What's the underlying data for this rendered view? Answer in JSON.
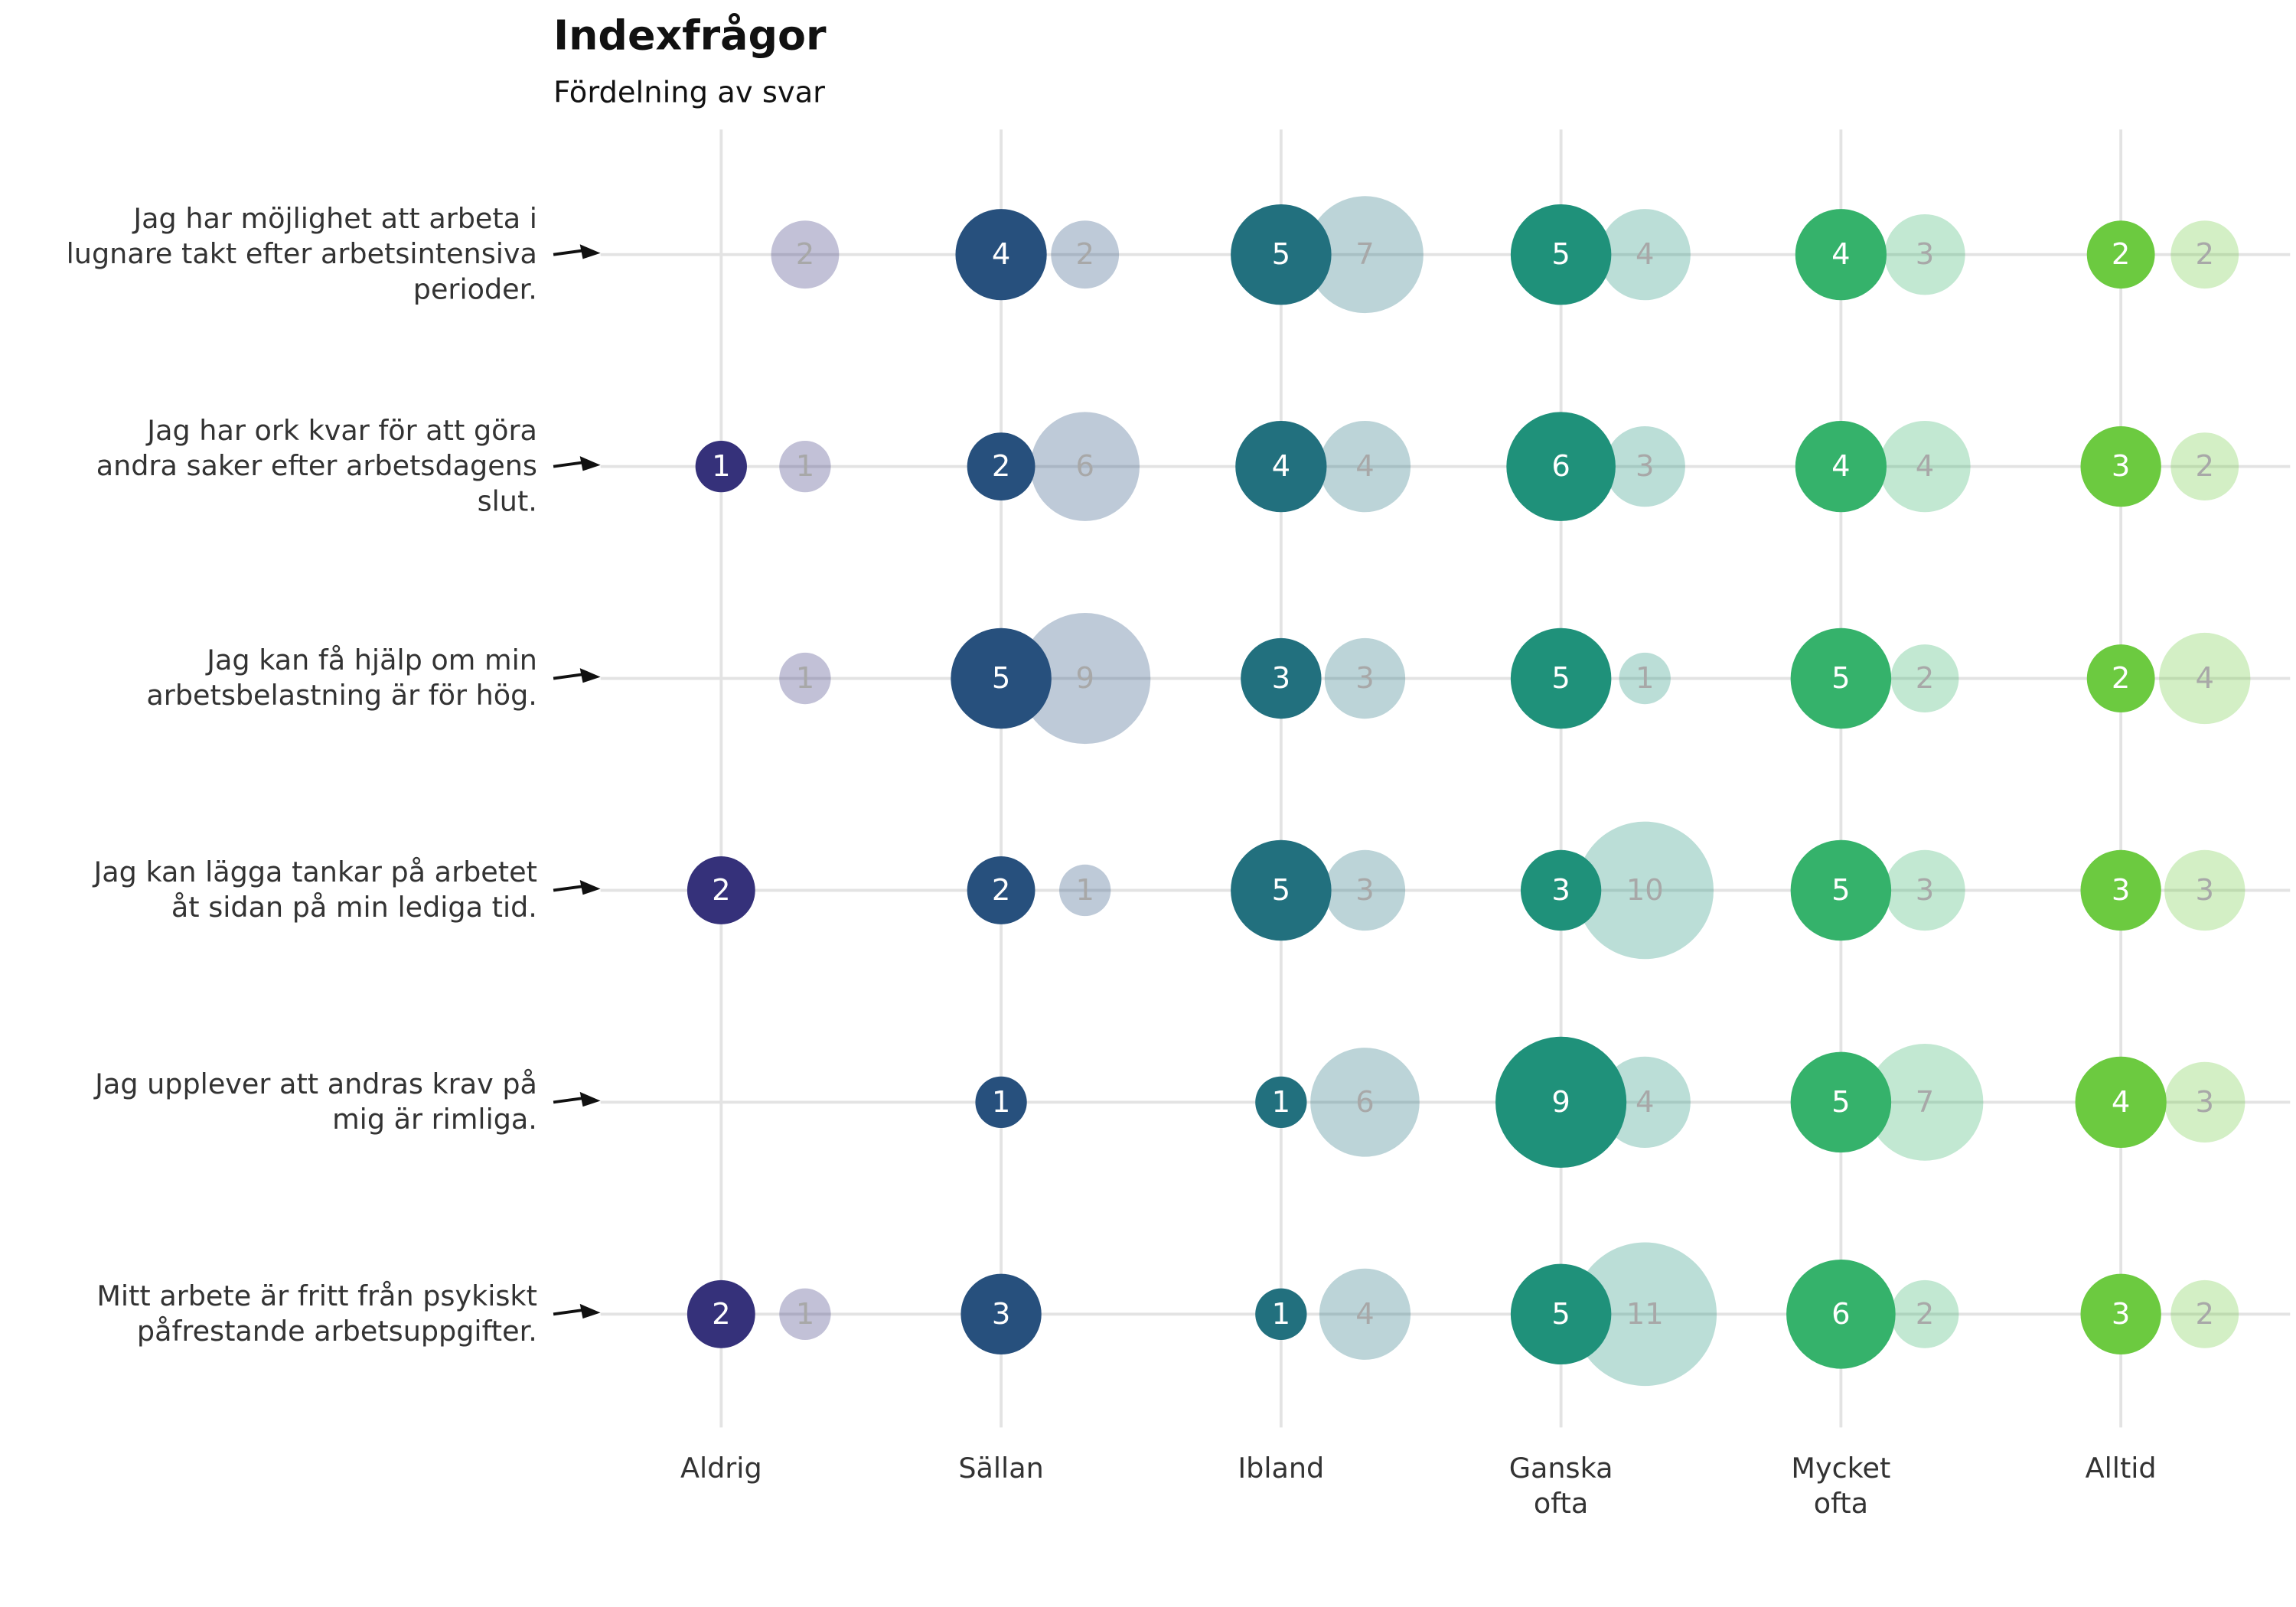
{
  "chart_data": {
    "type": "bubble",
    "title": "Indexfrågor",
    "subtitle": "Fördelning av svar",
    "categories": [
      "Aldrig",
      "Sällan",
      "Ibland",
      "Ganska ofta",
      "Mycket ofta",
      "Alltid"
    ],
    "colors": [
      "#35317a",
      "#27507d",
      "#22707e",
      "#1f917a",
      "#35b26b",
      "#6cca40"
    ],
    "rows": [
      {
        "label": "Jag har möjlighet att arbeta i lugnare takt efter arbetsintensiva perioder.",
        "values": [
          null,
          4,
          5,
          5,
          4,
          2
        ],
        "comparison": [
          2,
          2,
          7,
          4,
          3,
          2
        ]
      },
      {
        "label": "Jag har ork kvar för att göra andra saker efter arbetsdagens slut.",
        "values": [
          1,
          2,
          4,
          6,
          4,
          3
        ],
        "comparison": [
          1,
          6,
          4,
          3,
          4,
          2
        ]
      },
      {
        "label": "Jag kan få hjälp om min arbetsbelastning är för hög.",
        "values": [
          null,
          5,
          3,
          5,
          5,
          2
        ],
        "comparison": [
          1,
          9,
          3,
          1,
          2,
          4
        ]
      },
      {
        "label": "Jag kan lägga tankar på arbetet åt sidan på min lediga tid.",
        "values": [
          2,
          2,
          5,
          3,
          5,
          3
        ],
        "comparison": [
          null,
          1,
          3,
          10,
          3,
          3
        ]
      },
      {
        "label": "Jag upplever att andras krav på mig är rimliga.",
        "values": [
          null,
          1,
          1,
          9,
          5,
          4
        ],
        "comparison": [
          null,
          null,
          6,
          4,
          7,
          3
        ]
      },
      {
        "label": "Mitt arbete är fritt från psykiskt påfrestande arbetsuppgifter.",
        "values": [
          2,
          3,
          1,
          5,
          6,
          3
        ],
        "comparison": [
          1,
          null,
          4,
          11,
          2,
          2
        ]
      }
    ]
  }
}
